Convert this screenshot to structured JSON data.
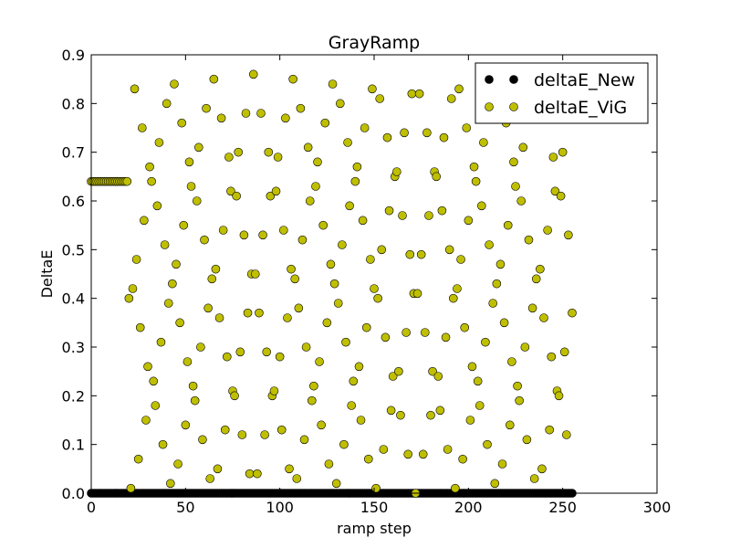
{
  "chart_data": {
    "type": "scatter",
    "title": "GrayRamp",
    "xlabel": "ramp step",
    "ylabel": "DeltaE",
    "xlim": [
      0,
      300
    ],
    "ylim": [
      0,
      0.9
    ],
    "xticks": [
      "0",
      "50",
      "100",
      "150",
      "200",
      "250",
      "300"
    ],
    "yticks": [
      "0.0",
      "0.1",
      "0.2",
      "0.3",
      "0.4",
      "0.5",
      "0.6",
      "0.7",
      "0.8",
      "0.9"
    ],
    "grid": false,
    "legend_position": "top-right",
    "series": [
      {
        "name": "deltaE_New",
        "color": "#000000",
        "x_range": [
          0,
          255
        ],
        "x_step": 1,
        "constant_y": 0.0
      },
      {
        "name": "deltaE_ViG",
        "color": "#bfbf00",
        "x_range": [
          0,
          255
        ],
        "x_step": 1,
        "flat_until": 19,
        "flat_value": 0.64,
        "period": 86,
        "amplitude": 0.86,
        "phase_offsets": [
          0,
          21.5,
          43,
          64.5
        ]
      }
    ]
  }
}
